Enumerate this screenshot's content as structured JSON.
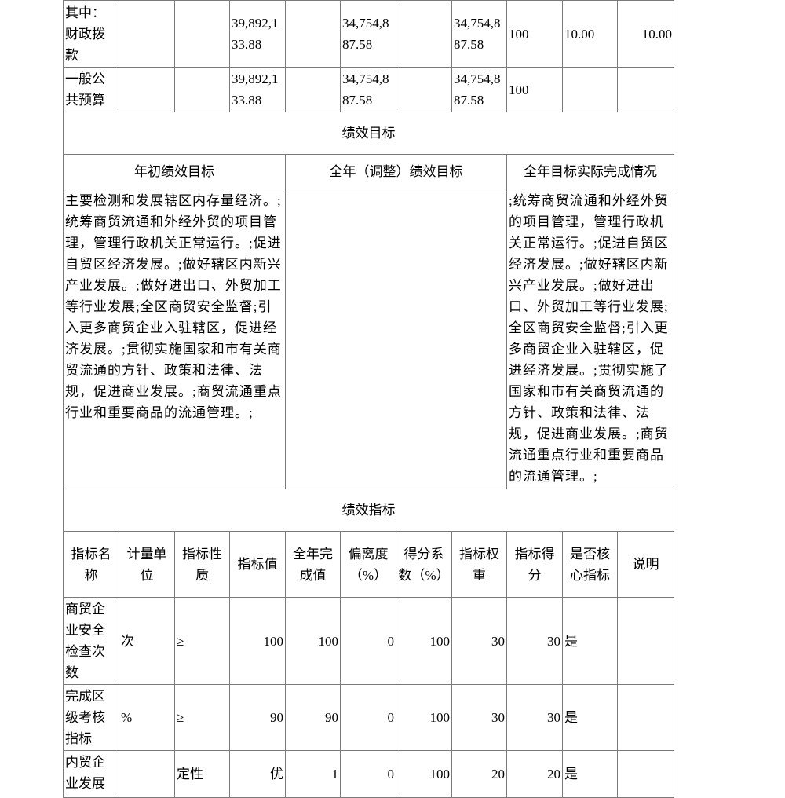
{
  "funding_rows": [
    {
      "label": "其中：财政拨款",
      "col2": "",
      "col3": "",
      "budget": "39,892,133.88",
      "col5": "",
      "adjusted": "34,754,887.58",
      "col7": "",
      "executed": "34,754,887.58",
      "rate": "100",
      "weight": "10.00",
      "score": "10.00"
    },
    {
      "label": "一般公共预算",
      "col2": "",
      "col3": "",
      "budget": "39,892,133.88",
      "col5": "",
      "adjusted": "34,754,887.58",
      "col7": "",
      "executed": "34,754,887.58",
      "rate": "100",
      "weight": "",
      "score": ""
    }
  ],
  "goals": {
    "section_title": "绩效目标",
    "headers": [
      "年初绩效目标",
      "全年（调整）绩效目标",
      "全年目标实际完成情况"
    ],
    "initial": "主要检测和发展辖区内存量经济。;统筹商贸流通和外经外贸的项目管理，管理行政机关正常运行。;促进自贸区经济发展。;做好辖区内新兴产业发展。;做好进出口、外贸加工等行业发展;全区商贸安全监督;引入更多商贸企业入驻辖区，促进经济发展。;贯彻实施国家和市有关商贸流通的方针、政策和法律、法规，促进商业发展。;商贸流通重点行业和重要商品的流通管理。;",
    "adjusted": "",
    "actual": ";统筹商贸流通和外经外贸的项目管理，管理行政机关正常运行。;促进自贸区经济发展。;做好辖区内新兴产业发展。;做好进出口、外贸加工等行业发展;全区商贸安全监督;引入更多商贸企业入驻辖区，促进经济发展。;贯彻实施了国家和市有关商贸流通的方针、政策和法律、法规，促进商业发展。;商贸流通重点行业和重要商品的流通管理。;"
  },
  "indicators": {
    "section_title": "绩效指标",
    "headers": [
      "指标名称",
      "计量单位",
      "指标性质",
      "指标值",
      "全年完成值",
      "偏离度（%）",
      "得分系数（%）",
      "指标权重",
      "指标得分",
      "是否核心指标",
      "说明"
    ],
    "rows": [
      {
        "name": "商贸企业安全检查次数",
        "unit": "次",
        "nature": "≥",
        "target": "100",
        "actual": "100",
        "deviation": "0",
        "coef": "100",
        "weight": "30",
        "score": "30",
        "core": "是",
        "note": ""
      },
      {
        "name": "完成区级考核指标",
        "unit": "%",
        "nature": "≥",
        "target": "90",
        "actual": "90",
        "deviation": "0",
        "coef": "100",
        "weight": "30",
        "score": "30",
        "core": "是",
        "note": ""
      },
      {
        "name": "内贸企业发展",
        "unit": "",
        "nature": "定性",
        "target": "优",
        "actual": "1",
        "deviation": "0",
        "coef": "100",
        "weight": "20",
        "score": "20",
        "core": "是",
        "note": ""
      }
    ]
  }
}
